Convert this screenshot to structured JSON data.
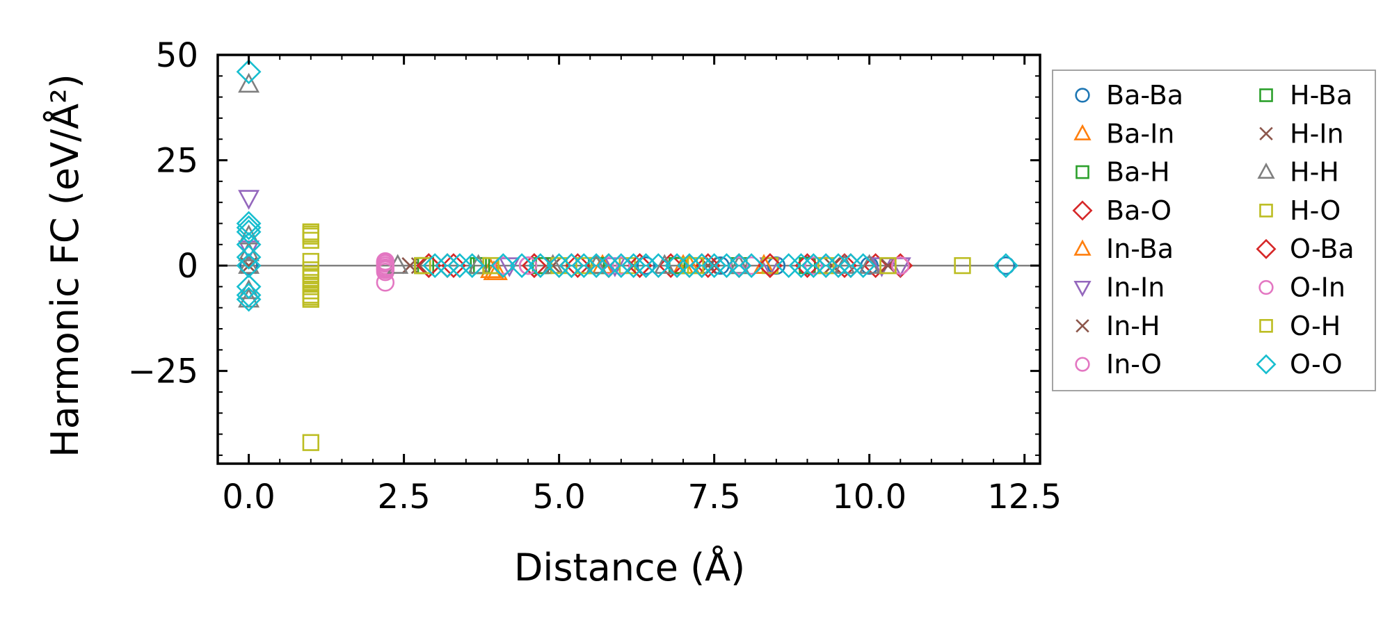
{
  "chart_data": {
    "type": "scatter",
    "title": "",
    "xlabel": "Distance (Å)",
    "ylabel": "Harmonic FC (eV/Å²)",
    "xlim": [
      -0.5,
      12.75
    ],
    "ylim": [
      -47,
      50
    ],
    "xticks": [
      0.0,
      2.5,
      5.0,
      7.5,
      10.0,
      12.5
    ],
    "xtick_labels": [
      "0.0",
      "2.5",
      "5.0",
      "7.5",
      "10.0",
      "12.5"
    ],
    "yticks": [
      -25,
      0,
      25,
      50
    ],
    "ytick_labels": [
      "−25",
      "0",
      "25",
      "50"
    ],
    "zero_line": true,
    "legend": {
      "placement": "outside-right",
      "columns": 2
    },
    "series": [
      {
        "name": "Ba-Ba",
        "marker": "circle",
        "color": "#1f77b4",
        "points": [
          [
            0,
            0
          ],
          [
            4.5,
            0
          ],
          [
            6.4,
            0
          ],
          [
            7.6,
            0
          ],
          [
            8.5,
            0
          ],
          [
            9.0,
            0
          ],
          [
            10.0,
            0
          ],
          [
            12.2,
            0
          ]
        ]
      },
      {
        "name": "Ba-In",
        "marker": "triangle-up",
        "color": "#ff7f0e",
        "points": [
          [
            3.9,
            -1
          ],
          [
            4.0,
            -1.5
          ],
          [
            5.6,
            0
          ],
          [
            7.0,
            0
          ],
          [
            8.3,
            0
          ]
        ]
      },
      {
        "name": "Ba-H",
        "marker": "square",
        "color": "#2ca02c",
        "points": [
          [
            2.8,
            0
          ],
          [
            3.7,
            0
          ],
          [
            4.7,
            0
          ],
          [
            5.6,
            0
          ],
          [
            6.9,
            0
          ],
          [
            7.9,
            0
          ],
          [
            9.0,
            0
          ]
        ]
      },
      {
        "name": "Ba-O",
        "marker": "diamond",
        "color": "#d62728",
        "points": [
          [
            2.9,
            0
          ],
          [
            3.2,
            0
          ],
          [
            4.6,
            0
          ],
          [
            5.2,
            0
          ],
          [
            5.8,
            0
          ],
          [
            6.3,
            0
          ],
          [
            6.8,
            0
          ],
          [
            7.3,
            0
          ],
          [
            7.9,
            0
          ],
          [
            8.4,
            0
          ],
          [
            9.0,
            0
          ],
          [
            9.6,
            0
          ],
          [
            10.1,
            0
          ],
          [
            10.5,
            0
          ]
        ]
      },
      {
        "name": "In-Ba",
        "marker": "triangle-up",
        "color": "#ff7f0e",
        "points": [
          [
            3.95,
            -1.5
          ],
          [
            5.7,
            0
          ],
          [
            7.1,
            0
          ],
          [
            8.3,
            0
          ]
        ]
      },
      {
        "name": "In-In",
        "marker": "triangle-down",
        "color": "#9467bd",
        "points": [
          [
            0,
            16
          ],
          [
            0,
            4
          ],
          [
            4.2,
            0
          ],
          [
            5.9,
            0
          ],
          [
            8.4,
            0
          ],
          [
            10.2,
            0
          ],
          [
            10.5,
            0
          ]
        ]
      },
      {
        "name": "In-H",
        "marker": "x",
        "color": "#8c564b",
        "points": [
          [
            0,
            0
          ],
          [
            2.6,
            0
          ],
          [
            2.75,
            0
          ],
          [
            4.9,
            0
          ],
          [
            6.2,
            0
          ],
          [
            7.4,
            0
          ],
          [
            9.4,
            0
          ],
          [
            10.3,
            0
          ]
        ]
      },
      {
        "name": "In-O",
        "marker": "circle",
        "color": "#e377c2",
        "points": [
          [
            2.2,
            1
          ],
          [
            2.2,
            0.5
          ],
          [
            2.2,
            0
          ],
          [
            2.2,
            -0.5
          ],
          [
            2.2,
            -1
          ],
          [
            2.2,
            -1.5
          ],
          [
            2.2,
            -4
          ],
          [
            4.1,
            0
          ],
          [
            4.5,
            0
          ],
          [
            5.8,
            0
          ],
          [
            6.9,
            0
          ],
          [
            8.1,
            0
          ],
          [
            9.1,
            0
          ],
          [
            10.5,
            0
          ]
        ]
      },
      {
        "name": "H-Ba",
        "marker": "square",
        "color": "#2ca02c",
        "points": [
          [
            2.85,
            0
          ],
          [
            3.75,
            0
          ],
          [
            4.75,
            0
          ],
          [
            5.6,
            0
          ],
          [
            6.9,
            0
          ]
        ]
      },
      {
        "name": "H-In",
        "marker": "x",
        "color": "#8c564b",
        "points": [
          [
            0,
            0
          ],
          [
            2.6,
            0
          ],
          [
            4.9,
            0
          ],
          [
            6.2,
            0
          ],
          [
            7.5,
            0
          ],
          [
            9.4,
            0
          ]
        ]
      },
      {
        "name": "H-H",
        "marker": "triangle-up",
        "color": "#7f7f7f",
        "points": [
          [
            0,
            43
          ],
          [
            0,
            7
          ],
          [
            0,
            3
          ],
          [
            0,
            0
          ],
          [
            0,
            -6
          ],
          [
            0,
            -8
          ],
          [
            2.4,
            0
          ],
          [
            3.7,
            0
          ],
          [
            4.9,
            0
          ],
          [
            5.6,
            0
          ],
          [
            6.7,
            0
          ],
          [
            7.9,
            0
          ],
          [
            9.6,
            0
          ],
          [
            10.0,
            0
          ]
        ]
      },
      {
        "name": "H-O",
        "marker": "square",
        "color": "#bcbd22",
        "points": [
          [
            1.0,
            8
          ],
          [
            1.0,
            7
          ],
          [
            1.0,
            6
          ],
          [
            1.0,
            1
          ],
          [
            1.0,
            -1
          ],
          [
            1.0,
            -2
          ],
          [
            1.0,
            -3
          ],
          [
            1.0,
            -4
          ],
          [
            1.0,
            -5
          ],
          [
            1.0,
            -6
          ],
          [
            1.0,
            -7
          ],
          [
            1.0,
            -8
          ],
          [
            1.0,
            -42
          ],
          [
            2.8,
            0
          ],
          [
            3.9,
            0
          ],
          [
            5.0,
            0
          ],
          [
            6.1,
            0
          ],
          [
            7.1,
            0
          ],
          [
            8.4,
            0
          ],
          [
            9.3,
            0
          ],
          [
            10.3,
            0
          ],
          [
            11.5,
            0
          ]
        ]
      },
      {
        "name": "O-Ba",
        "marker": "diamond",
        "color": "#d62728",
        "points": [
          [
            2.9,
            0
          ],
          [
            3.3,
            0
          ],
          [
            4.6,
            0
          ],
          [
            5.3,
            0
          ],
          [
            6.3,
            0
          ],
          [
            7.4,
            0
          ],
          [
            8.4,
            0
          ],
          [
            9.7,
            0
          ]
        ]
      },
      {
        "name": "O-In",
        "marker": "circle",
        "color": "#e377c2",
        "points": [
          [
            2.2,
            0.8
          ],
          [
            2.2,
            -0.8
          ],
          [
            4.5,
            0
          ],
          [
            6.0,
            0
          ],
          [
            7.9,
            0
          ],
          [
            9.3,
            0
          ]
        ]
      },
      {
        "name": "O-H",
        "marker": "square",
        "color": "#bcbd22",
        "points": [
          [
            1.0,
            7.5
          ],
          [
            1.0,
            -7.5
          ],
          [
            2.8,
            0
          ],
          [
            3.9,
            0
          ],
          [
            5.4,
            0
          ],
          [
            7.2,
            0
          ],
          [
            9.3,
            0
          ],
          [
            10.3,
            0
          ]
        ]
      },
      {
        "name": "O-O",
        "marker": "diamond",
        "color": "#17becf",
        "points": [
          [
            0,
            46
          ],
          [
            0,
            10
          ],
          [
            0,
            9
          ],
          [
            0,
            8
          ],
          [
            0,
            5
          ],
          [
            0,
            2
          ],
          [
            0,
            0
          ],
          [
            0,
            -5
          ],
          [
            0,
            -7
          ],
          [
            0,
            -8
          ],
          [
            3.0,
            0
          ],
          [
            3.2,
            0
          ],
          [
            3.4,
            0
          ],
          [
            3.6,
            0
          ],
          [
            4.1,
            0
          ],
          [
            4.4,
            0
          ],
          [
            4.7,
            0
          ],
          [
            5.0,
            0
          ],
          [
            5.2,
            0
          ],
          [
            5.4,
            0
          ],
          [
            5.6,
            0
          ],
          [
            5.8,
            0
          ],
          [
            6.0,
            0
          ],
          [
            6.2,
            0
          ],
          [
            6.4,
            0
          ],
          [
            6.6,
            0
          ],
          [
            6.9,
            0
          ],
          [
            7.1,
            0
          ],
          [
            7.3,
            0
          ],
          [
            7.5,
            0
          ],
          [
            7.7,
            0
          ],
          [
            7.9,
            0
          ],
          [
            8.1,
            0
          ],
          [
            8.7,
            0
          ],
          [
            8.9,
            0
          ],
          [
            9.1,
            0
          ],
          [
            9.3,
            0
          ],
          [
            9.5,
            0
          ],
          [
            9.7,
            0
          ],
          [
            9.9,
            0
          ],
          [
            12.2,
            0
          ]
        ]
      }
    ]
  }
}
